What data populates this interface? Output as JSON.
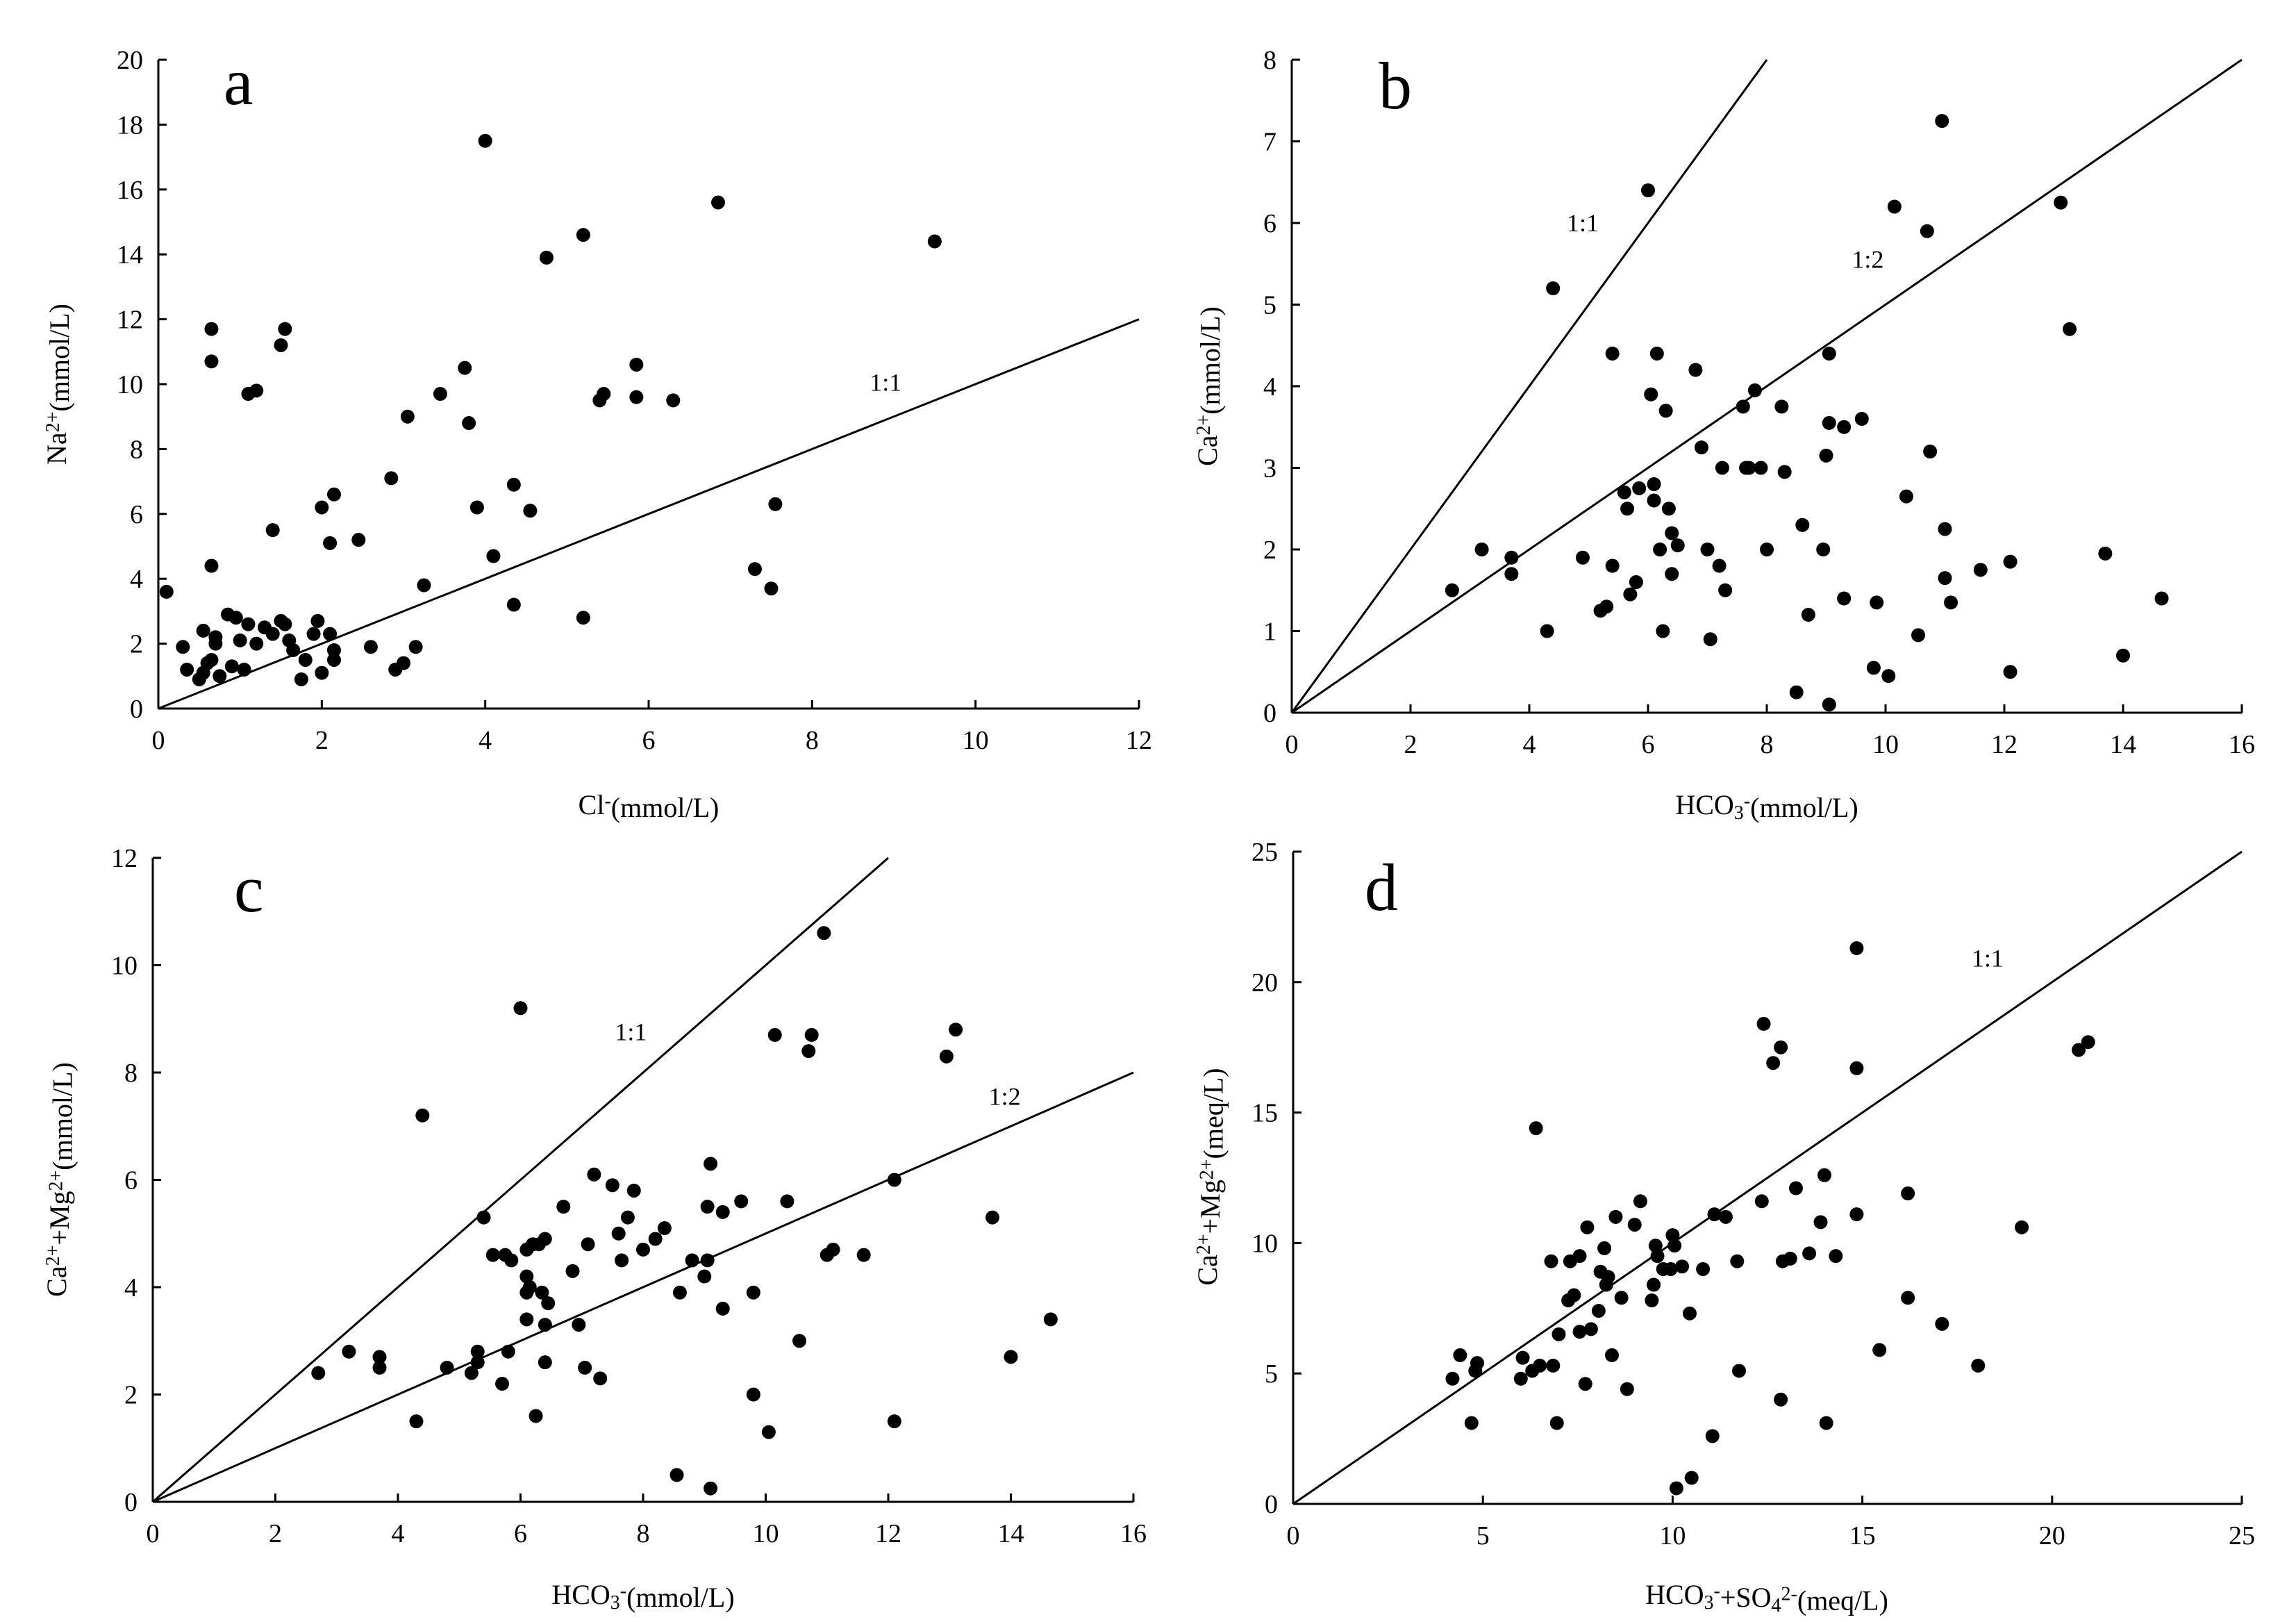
{
  "chart_data": [
    {
      "type": "scatter",
      "panel": "a",
      "xlabel": "Cl⁻(mmol/L)",
      "ylabel": "Na²⁺(mmol/L)",
      "xlim": [
        0,
        12
      ],
      "ylim": [
        0,
        20
      ],
      "xticks": [
        0,
        2,
        4,
        6,
        8,
        10,
        12
      ],
      "yticks": [
        0,
        2,
        4,
        6,
        8,
        10,
        12,
        14,
        16,
        18,
        20
      ],
      "reference_lines": [
        {
          "label": "1:1",
          "slope": 1,
          "label_at": [
            8.9,
            9.8
          ]
        }
      ],
      "points": [
        [
          0.1,
          3.6
        ],
        [
          0.3,
          1.9
        ],
        [
          0.35,
          1.2
        ],
        [
          0.55,
          2.4
        ],
        [
          0.6,
          1.4
        ],
        [
          0.5,
          0.9
        ],
        [
          0.55,
          1.1
        ],
        [
          0.65,
          1.5
        ],
        [
          0.7,
          2.2
        ],
        [
          0.7,
          2.0
        ],
        [
          0.75,
          1.0
        ],
        [
          0.85,
          2.9
        ],
        [
          0.9,
          1.3
        ],
        [
          0.95,
          2.8
        ],
        [
          1.0,
          2.1
        ],
        [
          1.05,
          1.2
        ],
        [
          1.1,
          2.6
        ],
        [
          1.2,
          2.0
        ],
        [
          1.3,
          2.5
        ],
        [
          1.4,
          2.3
        ],
        [
          1.5,
          2.7
        ],
        [
          1.55,
          2.6
        ],
        [
          1.6,
          2.1
        ],
        [
          1.65,
          1.8
        ],
        [
          1.75,
          0.9
        ],
        [
          1.8,
          1.5
        ],
        [
          1.9,
          2.3
        ],
        [
          1.95,
          2.7
        ],
        [
          2.0,
          1.1
        ],
        [
          2.1,
          2.3
        ],
        [
          2.15,
          1.5
        ],
        [
          2.15,
          1.8
        ],
        [
          0.65,
          11.7
        ],
        [
          0.65,
          10.7
        ],
        [
          0.65,
          4.4
        ],
        [
          1.1,
          9.7
        ],
        [
          1.2,
          9.8
        ],
        [
          1.4,
          5.5
        ],
        [
          1.5,
          11.2
        ],
        [
          1.55,
          11.7
        ],
        [
          2.0,
          6.2
        ],
        [
          2.1,
          5.1
        ],
        [
          2.15,
          6.6
        ],
        [
          2.45,
          5.2
        ],
        [
          2.6,
          1.9
        ],
        [
          2.85,
          7.1
        ],
        [
          2.9,
          1.2
        ],
        [
          3.0,
          1.4
        ],
        [
          3.05,
          9.0
        ],
        [
          3.15,
          1.9
        ],
        [
          3.25,
          3.8
        ],
        [
          3.45,
          9.7
        ],
        [
          3.75,
          10.5
        ],
        [
          3.8,
          8.8
        ],
        [
          3.9,
          6.2
        ],
        [
          4.0,
          17.5
        ],
        [
          4.1,
          4.7
        ],
        [
          4.35,
          6.9
        ],
        [
          4.35,
          3.2
        ],
        [
          4.55,
          6.1
        ],
        [
          4.75,
          13.9
        ],
        [
          5.2,
          2.8
        ],
        [
          5.2,
          14.6
        ],
        [
          5.4,
          9.5
        ],
        [
          5.45,
          9.7
        ],
        [
          5.85,
          10.6
        ],
        [
          5.85,
          9.6
        ],
        [
          6.3,
          9.5
        ],
        [
          6.85,
          15.6
        ],
        [
          7.3,
          4.3
        ],
        [
          7.5,
          3.7
        ],
        [
          7.55,
          6.3
        ],
        [
          9.5,
          14.4
        ]
      ]
    },
    {
      "type": "scatter",
      "panel": "b",
      "xlabel": "HCO₃⁻(mmol/L)",
      "ylabel": "Ca²⁺(mmol/L)",
      "xlim": [
        0,
        16
      ],
      "ylim": [
        0,
        8
      ],
      "xticks": [
        0,
        2,
        4,
        6,
        8,
        10,
        12,
        14,
        16
      ],
      "yticks": [
        0,
        1,
        2,
        3,
        4,
        5,
        6,
        7,
        8
      ],
      "reference_lines": [
        {
          "label": "1:1",
          "slope": 1,
          "label_at": [
            4.9,
            5.9
          ]
        },
        {
          "label": "1:2",
          "slope": 0.5,
          "label_at": [
            9.7,
            5.45
          ]
        }
      ],
      "points": [
        [
          2.7,
          1.5
        ],
        [
          3.2,
          2.0
        ],
        [
          3.7,
          1.9
        ],
        [
          3.7,
          1.7
        ],
        [
          4.3,
          1.0
        ],
        [
          4.4,
          5.2
        ],
        [
          4.9,
          1.9
        ],
        [
          5.2,
          1.25
        ],
        [
          5.3,
          1.3
        ],
        [
          5.4,
          4.4
        ],
        [
          5.4,
          1.8
        ],
        [
          5.6,
          2.7
        ],
        [
          5.65,
          2.5
        ],
        [
          5.7,
          1.45
        ],
        [
          5.8,
          1.6
        ],
        [
          5.85,
          2.75
        ],
        [
          6.0,
          6.4
        ],
        [
          6.05,
          3.9
        ],
        [
          6.1,
          2.8
        ],
        [
          6.1,
          2.6
        ],
        [
          6.15,
          4.4
        ],
        [
          6.2,
          2.0
        ],
        [
          6.25,
          1.0
        ],
        [
          6.3,
          3.7
        ],
        [
          6.35,
          2.5
        ],
        [
          6.4,
          2.2
        ],
        [
          6.4,
          1.7
        ],
        [
          6.5,
          2.05
        ],
        [
          6.8,
          4.2
        ],
        [
          6.9,
          3.25
        ],
        [
          7.0,
          2.0
        ],
        [
          7.05,
          0.9
        ],
        [
          7.2,
          1.8
        ],
        [
          7.25,
          3.0
        ],
        [
          7.3,
          1.5
        ],
        [
          7.6,
          3.75
        ],
        [
          7.65,
          3.0
        ],
        [
          7.7,
          3.0
        ],
        [
          7.8,
          3.95
        ],
        [
          7.9,
          3.0
        ],
        [
          8.0,
          2.0
        ],
        [
          8.25,
          3.75
        ],
        [
          8.3,
          2.95
        ],
        [
          8.5,
          0.25
        ],
        [
          8.6,
          2.3
        ],
        [
          8.7,
          1.2
        ],
        [
          8.95,
          2.0
        ],
        [
          9.0,
          3.15
        ],
        [
          9.05,
          4.4
        ],
        [
          9.05,
          3.55
        ],
        [
          9.05,
          0.1
        ],
        [
          9.3,
          1.4
        ],
        [
          9.3,
          3.5
        ],
        [
          9.6,
          3.6
        ],
        [
          9.8,
          0.55
        ],
        [
          9.85,
          1.35
        ],
        [
          10.05,
          0.45
        ],
        [
          10.15,
          6.2
        ],
        [
          10.35,
          2.65
        ],
        [
          10.55,
          0.95
        ],
        [
          10.7,
          5.9
        ],
        [
          10.75,
          3.2
        ],
        [
          10.95,
          7.25
        ],
        [
          11.0,
          1.65
        ],
        [
          11.0,
          2.25
        ],
        [
          11.1,
          1.35
        ],
        [
          11.6,
          1.75
        ],
        [
          12.1,
          0.5
        ],
        [
          12.1,
          1.85
        ],
        [
          12.95,
          6.25
        ],
        [
          13.1,
          4.7
        ],
        [
          13.7,
          1.95
        ],
        [
          14.0,
          0.7
        ],
        [
          14.65,
          1.4
        ]
      ]
    },
    {
      "type": "scatter",
      "panel": "c",
      "xlabel": "HCO₃⁻(mmol/L)",
      "ylabel": "Ca²⁺+Mg²⁺(mmol/L)",
      "xlim": [
        0,
        16
      ],
      "ylim": [
        0,
        12
      ],
      "xticks": [
        0,
        2,
        4,
        6,
        8,
        10,
        12,
        14,
        16
      ],
      "yticks": [
        0,
        2,
        4,
        6,
        8,
        10,
        12
      ],
      "reference_lines": [
        {
          "label": "1:1",
          "slope": 1,
          "label_at": [
            7.8,
            8.6
          ]
        },
        {
          "label": "1:2",
          "slope": 0.5,
          "label_at": [
            13.9,
            7.4
          ]
        }
      ],
      "points": [
        [
          2.7,
          2.4
        ],
        [
          3.2,
          2.8
        ],
        [
          3.7,
          2.7
        ],
        [
          3.7,
          2.5
        ],
        [
          4.3,
          1.5
        ],
        [
          4.4,
          7.2
        ],
        [
          4.8,
          2.5
        ],
        [
          5.2,
          2.4
        ],
        [
          5.3,
          2.8
        ],
        [
          5.4,
          5.3
        ],
        [
          5.3,
          2.6
        ],
        [
          5.55,
          4.6
        ],
        [
          5.7,
          2.2
        ],
        [
          5.75,
          4.6
        ],
        [
          5.8,
          2.8
        ],
        [
          5.85,
          4.5
        ],
        [
          6.0,
          9.2
        ],
        [
          6.1,
          4.7
        ],
        [
          6.1,
          4.2
        ],
        [
          6.1,
          3.9
        ],
        [
          6.15,
          4.0
        ],
        [
          6.1,
          3.4
        ],
        [
          6.2,
          4.8
        ],
        [
          6.25,
          1.6
        ],
        [
          6.3,
          4.8
        ],
        [
          6.35,
          3.9
        ],
        [
          6.4,
          4.9
        ],
        [
          6.45,
          3.7
        ],
        [
          6.4,
          3.3
        ],
        [
          6.4,
          2.6
        ],
        [
          6.7,
          5.5
        ],
        [
          6.85,
          4.3
        ],
        [
          6.95,
          3.3
        ],
        [
          7.05,
          2.5
        ],
        [
          7.1,
          4.8
        ],
        [
          7.2,
          6.1
        ],
        [
          7.3,
          2.3
        ],
        [
          7.5,
          5.9
        ],
        [
          7.6,
          5.0
        ],
        [
          7.65,
          4.5
        ],
        [
          7.75,
          5.3
        ],
        [
          7.85,
          5.8
        ],
        [
          8.0,
          4.7
        ],
        [
          8.2,
          4.9
        ],
        [
          8.35,
          5.1
        ],
        [
          8.55,
          0.5
        ],
        [
          8.6,
          3.9
        ],
        [
          8.8,
          4.5
        ],
        [
          9.0,
          4.2
        ],
        [
          9.05,
          5.5
        ],
        [
          9.05,
          4.5
        ],
        [
          9.1,
          0.25
        ],
        [
          9.1,
          6.3
        ],
        [
          9.3,
          3.6
        ],
        [
          9.3,
          5.4
        ],
        [
          9.6,
          5.6
        ],
        [
          9.8,
          3.9
        ],
        [
          9.8,
          2.0
        ],
        [
          10.05,
          1.3
        ],
        [
          10.15,
          8.7
        ],
        [
          10.35,
          5.6
        ],
        [
          10.55,
          3.0
        ],
        [
          10.7,
          8.4
        ],
        [
          10.75,
          8.7
        ],
        [
          10.95,
          10.6
        ],
        [
          11.0,
          4.6
        ],
        [
          11.1,
          4.7
        ],
        [
          11.6,
          4.6
        ],
        [
          12.1,
          6.0
        ],
        [
          12.1,
          1.5
        ],
        [
          12.95,
          8.3
        ],
        [
          13.1,
          8.8
        ],
        [
          13.7,
          5.3
        ],
        [
          14.0,
          2.7
        ],
        [
          14.65,
          3.4
        ]
      ]
    },
    {
      "type": "scatter",
      "panel": "d",
      "xlabel": "HCO₃⁻+SO₄²⁻(meq/L)",
      "ylabel": "Ca²⁺+Mg²⁺(meq/L)",
      "xlim": [
        0,
        25
      ],
      "ylim": [
        0,
        25
      ],
      "xticks": [
        0,
        5,
        10,
        15,
        20,
        25
      ],
      "yticks": [
        0,
        5,
        10,
        15,
        20,
        25
      ],
      "reference_lines": [
        {
          "label": "1:1",
          "slope": 1,
          "label_at": [
            18.3,
            20.6
          ]
        }
      ],
      "points": [
        [
          4.2,
          4.8
        ],
        [
          4.4,
          5.7
        ],
        [
          4.7,
          3.1
        ],
        [
          4.8,
          5.1
        ],
        [
          4.85,
          5.4
        ],
        [
          6.0,
          4.8
        ],
        [
          6.05,
          5.6
        ],
        [
          6.3,
          5.1
        ],
        [
          6.4,
          14.4
        ],
        [
          6.5,
          5.3
        ],
        [
          6.8,
          9.3
        ],
        [
          6.85,
          5.3
        ],
        [
          6.95,
          3.1
        ],
        [
          7.0,
          6.5
        ],
        [
          7.25,
          7.8
        ],
        [
          7.3,
          9.3
        ],
        [
          7.4,
          8.0
        ],
        [
          7.55,
          6.6
        ],
        [
          7.55,
          9.5
        ],
        [
          7.7,
          4.6
        ],
        [
          7.75,
          10.6
        ],
        [
          7.85,
          6.7
        ],
        [
          8.05,
          7.4
        ],
        [
          8.1,
          8.9
        ],
        [
          8.2,
          9.8
        ],
        [
          8.25,
          8.4
        ],
        [
          8.3,
          8.7
        ],
        [
          8.4,
          5.7
        ],
        [
          8.5,
          11.0
        ],
        [
          8.65,
          7.9
        ],
        [
          8.8,
          4.4
        ],
        [
          9.0,
          10.7
        ],
        [
          9.15,
          11.6
        ],
        [
          9.45,
          7.8
        ],
        [
          9.5,
          8.4
        ],
        [
          9.55,
          9.9
        ],
        [
          9.6,
          9.5
        ],
        [
          9.75,
          9.0
        ],
        [
          9.95,
          9.0
        ],
        [
          10.0,
          10.3
        ],
        [
          10.05,
          9.9
        ],
        [
          10.1,
          0.6
        ],
        [
          10.25,
          9.1
        ],
        [
          10.45,
          7.3
        ],
        [
          10.5,
          1.0
        ],
        [
          10.8,
          9.0
        ],
        [
          11.05,
          2.6
        ],
        [
          11.1,
          11.1
        ],
        [
          11.4,
          11.0
        ],
        [
          11.7,
          9.3
        ],
        [
          11.75,
          5.1
        ],
        [
          12.35,
          11.6
        ],
        [
          12.4,
          18.4
        ],
        [
          12.65,
          16.9
        ],
        [
          12.85,
          17.5
        ],
        [
          12.85,
          4.0
        ],
        [
          12.9,
          9.3
        ],
        [
          13.1,
          9.4
        ],
        [
          13.25,
          12.1
        ],
        [
          13.6,
          9.6
        ],
        [
          13.9,
          10.8
        ],
        [
          14.0,
          12.6
        ],
        [
          14.05,
          3.1
        ],
        [
          14.3,
          9.5
        ],
        [
          14.85,
          21.3
        ],
        [
          14.85,
          16.7
        ],
        [
          14.85,
          11.1
        ],
        [
          15.45,
          5.9
        ],
        [
          16.2,
          11.9
        ],
        [
          16.2,
          7.9
        ],
        [
          17.1,
          6.9
        ],
        [
          18.05,
          5.3
        ],
        [
          19.2,
          10.6
        ],
        [
          20.7,
          17.4
        ],
        [
          20.95,
          17.7
        ]
      ]
    }
  ]
}
